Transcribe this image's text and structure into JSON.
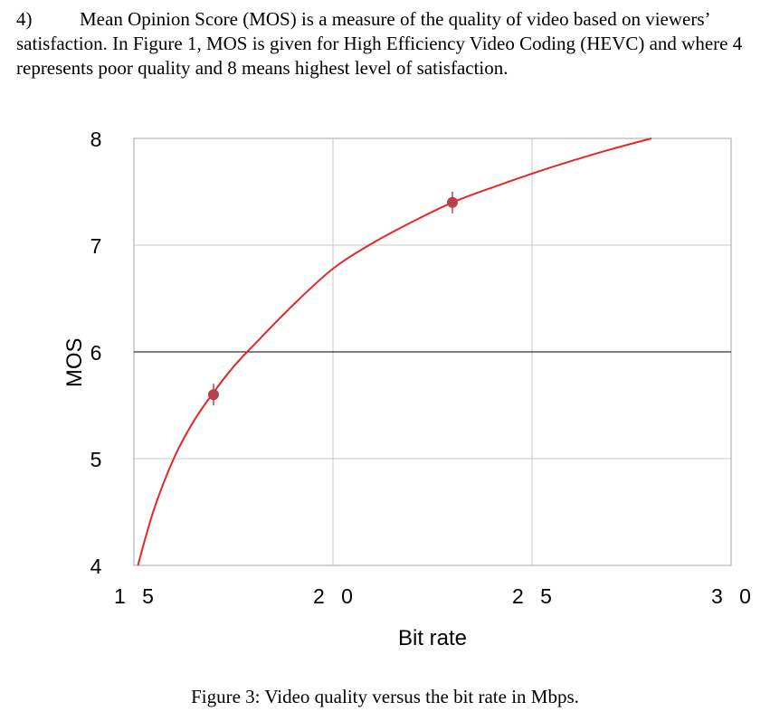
{
  "question": {
    "number": "4)",
    "text": "Mean Opinion Score (MOS) is a measure of the quality of video based on viewers’ satisfaction. In Figure 1, MOS is given for High Efficiency Video Coding (HEVC) and where 4 represents poor quality and 8 means highest level of satisfaction."
  },
  "caption": "Figure 3: Video quality versus the bit rate in Mbps.",
  "chart_data": {
    "type": "line",
    "title": "",
    "xlabel": "Bit rate",
    "ylabel": "MOS",
    "xlim": [
      15,
      30
    ],
    "ylim": [
      4,
      8
    ],
    "x_ticks": [
      15,
      20,
      25,
      30
    ],
    "x_tick_labels": [
      "1 5",
      "2 0",
      "2 5",
      "3 0"
    ],
    "y_ticks": [
      4,
      5,
      6,
      7,
      8
    ],
    "y_tick_labels": [
      "4",
      "5",
      "6",
      "7",
      "8"
    ],
    "grid": true,
    "reference_line": {
      "y": 6,
      "color": "#000000"
    },
    "series": [
      {
        "style": "curve",
        "color": "#e8262a",
        "x": [
          15.1,
          15.5,
          16,
          16.5,
          17,
          17.5,
          18,
          19,
          20,
          21,
          22,
          23,
          24,
          25,
          26,
          27,
          28
        ],
        "y": [
          4.0,
          4.52,
          5.0,
          5.35,
          5.62,
          5.86,
          6.06,
          6.44,
          6.78,
          7.02,
          7.22,
          7.4,
          7.54,
          7.67,
          7.79,
          7.9,
          8.0
        ]
      },
      {
        "style": "markers",
        "color": "#b8404a",
        "x": [
          17.0,
          23.0
        ],
        "y": [
          5.6,
          7.4
        ]
      }
    ]
  }
}
